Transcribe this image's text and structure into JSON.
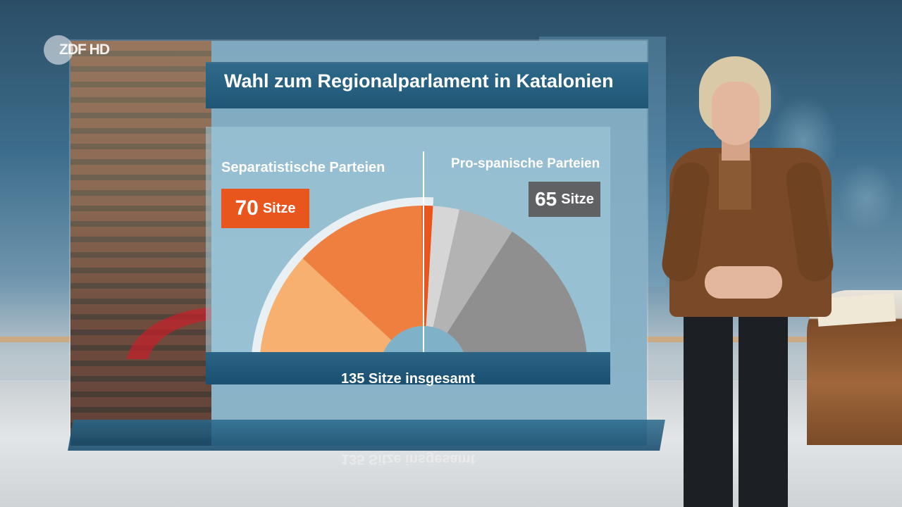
{
  "broadcaster_logo": "ZDF HD",
  "title": "Wahl zum Regionalparlament in Katalonien",
  "chart_data": {
    "type": "pie",
    "title": "Wahl zum Regionalparlament in Katalonien",
    "total_seats": 135,
    "total_label": "135 Sitze insgesamt",
    "groups": [
      {
        "name": "Separatistische Parteien",
        "seats": 70,
        "seats_label": "70",
        "unit": "Sitze",
        "color": "#e8561e"
      },
      {
        "name": "Pro-spanische Parteien",
        "seats": 65,
        "seats_label": "65",
        "unit": "Sitze",
        "color": "#5f6163"
      }
    ],
    "segments": [
      {
        "group": "Separatistische Parteien",
        "value": 32,
        "color": "#f8b070"
      },
      {
        "group": "Separatistische Parteien",
        "value": 35,
        "color": "#ef7f3f"
      },
      {
        "group": "Separatistische Parteien",
        "value": 3,
        "color": "#e8561e"
      },
      {
        "group": "Pro-spanische Parteien",
        "value": 7,
        "color": "#d6d6d6"
      },
      {
        "group": "Pro-spanische Parteien",
        "value": 15,
        "color": "#b3b3b3"
      },
      {
        "group": "Pro-spanische Parteien",
        "value": 39,
        "color": "#8f8f8f"
      },
      {
        "group": "Pro-spanische Parteien",
        "value": 4,
        "color": "#555555"
      }
    ]
  }
}
